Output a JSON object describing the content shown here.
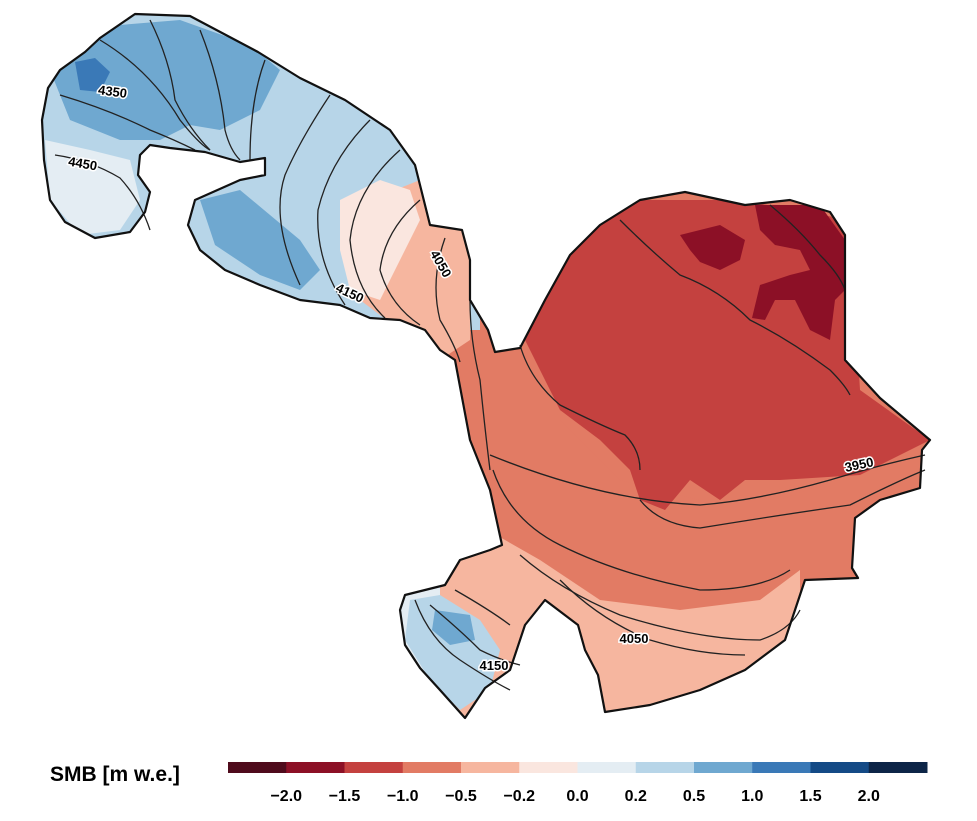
{
  "legend": {
    "title": "SMB [m w.e.]",
    "classes": [
      {
        "range": "< -2.0",
        "color": "#4f0b1c"
      },
      {
        "range": "-2.0 to -1.5",
        "color": "#8c1026"
      },
      {
        "range": "-1.5 to -1.0",
        "color": "#c4413f"
      },
      {
        "range": "-1.0 to -0.5",
        "color": "#e27b64"
      },
      {
        "range": "-0.5 to -0.2",
        "color": "#f6b69f"
      },
      {
        "range": "-0.2 to 0.0",
        "color": "#fae6df"
      },
      {
        "range": "0.0 to 0.2",
        "color": "#e4edf3"
      },
      {
        "range": "0.2 to 0.5",
        "color": "#b7d5e8"
      },
      {
        "range": "0.5 to 1.0",
        "color": "#6fa8d0"
      },
      {
        "range": "1.0 to 1.5",
        "color": "#3a79b7"
      },
      {
        "range": "1.5 to 2.0",
        "color": "#144a86"
      },
      {
        "range": "> 2.0",
        "color": "#0d2547"
      }
    ],
    "tick_labels": [
      "−2.0",
      "−1.5",
      "−1.0",
      "−0.5",
      "−0.2",
      "0.0",
      "0.2",
      "0.5",
      "1.0",
      "1.5",
      "2.0"
    ]
  },
  "contours": {
    "labels": [
      {
        "text": "4350",
        "region": "north-west tongue"
      },
      {
        "text": "4450",
        "region": "north-west tongue"
      },
      {
        "text": "4150",
        "region": "north-west tongue"
      },
      {
        "text": "4050",
        "region": "central neck"
      },
      {
        "text": "3950",
        "region": "eastern lobe"
      },
      {
        "text": "4050",
        "region": "southern lobe"
      },
      {
        "text": "4150",
        "region": "south-west tongue"
      }
    ]
  },
  "colors": {
    "outline": "#111111",
    "contour": "#222222"
  }
}
